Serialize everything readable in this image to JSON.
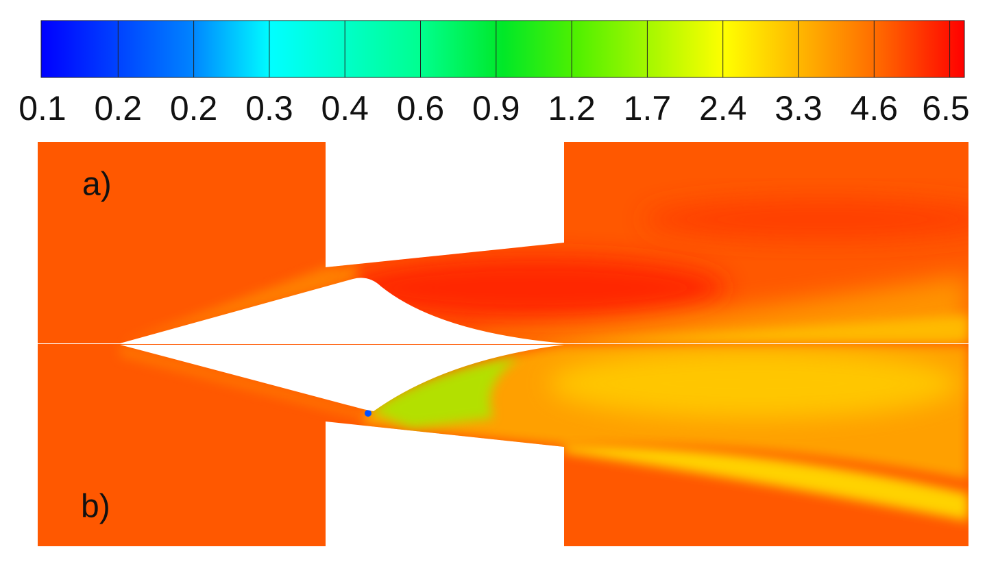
{
  "colorbar": {
    "labels": [
      "0.1",
      "0.2",
      "0.2",
      "0.3",
      "0.4",
      "0.6",
      "0.9",
      "1.2",
      "1.7",
      "2.4",
      "3.3",
      "4.6",
      "6.5"
    ]
  },
  "panels": [
    {
      "label": "a)"
    },
    {
      "label": "b)"
    }
  ]
}
